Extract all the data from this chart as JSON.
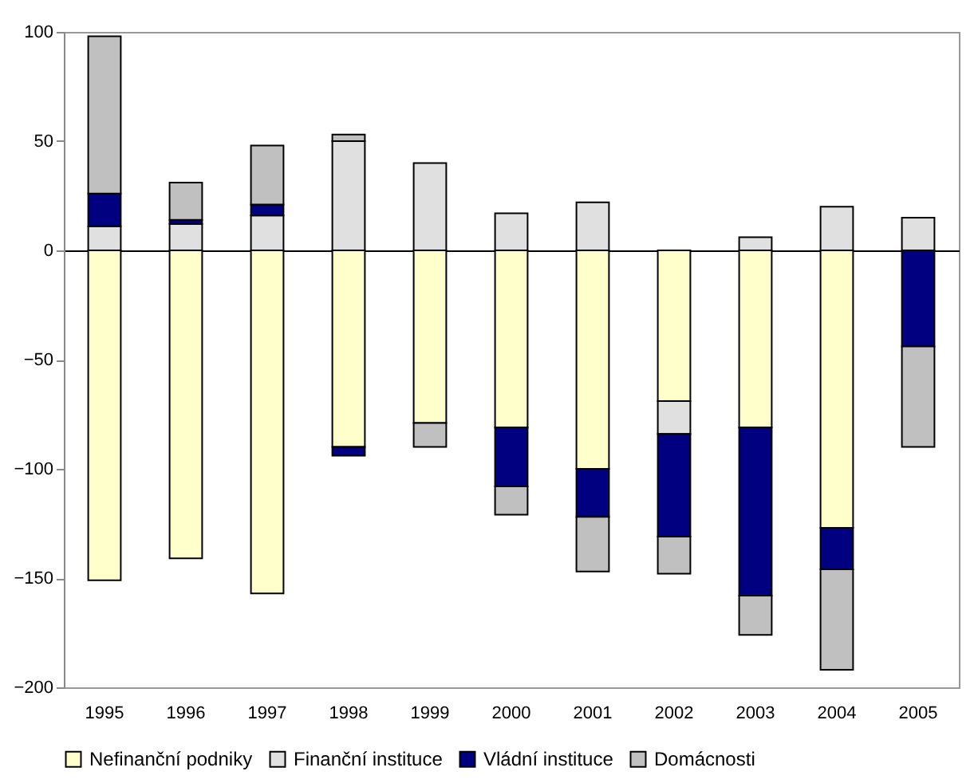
{
  "chart_data": {
    "type": "bar",
    "stacked": true,
    "categories": [
      "1995",
      "1996",
      "1997",
      "1998",
      "1999",
      "2000",
      "2001",
      "2002",
      "2003",
      "2004",
      "2005"
    ],
    "series": [
      {
        "name": "Nefinanční podniky",
        "color": "#ffffcc",
        "values": [
          -151,
          -141,
          -157,
          -90,
          -79,
          -81,
          -100,
          -69,
          -81,
          -127,
          null
        ]
      },
      {
        "name": "Finanční instituce",
        "color": "#e0e0e0",
        "values": [
          11,
          12,
          16,
          50,
          40,
          17,
          22,
          -15,
          6,
          20,
          15
        ]
      },
      {
        "name": "Vládní instituce",
        "color": "#000080",
        "values": [
          15,
          2,
          5,
          -4,
          null,
          -27,
          -22,
          -47,
          -77,
          -19,
          -44
        ]
      },
      {
        "name": "Domácnosti",
        "color": "#c0c0c0",
        "values": [
          72,
          17,
          27,
          3,
          -11,
          -13,
          -25,
          -17,
          -18,
          -46,
          -46
        ]
      }
    ],
    "ylim": [
      -200,
      100
    ],
    "yticks": [
      -200,
      -150,
      -100,
      -50,
      0,
      50,
      100
    ],
    "legend": "bottom"
  }
}
